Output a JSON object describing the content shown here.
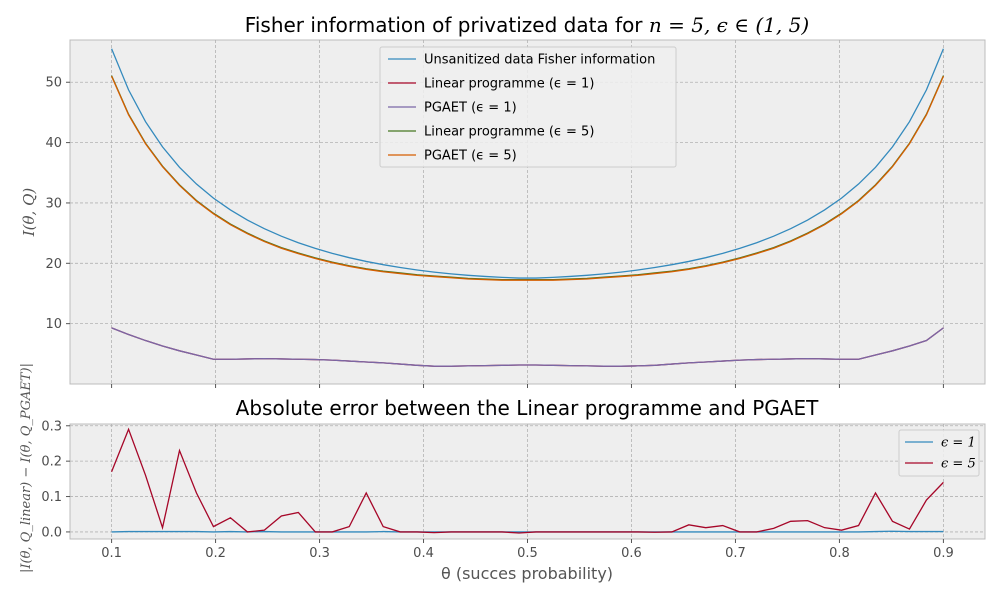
{
  "chart_data": [
    {
      "type": "line",
      "title": "Fisher information of privatized data for n = 5, ϵ ∈ (1, 5)",
      "xlabel": "",
      "ylabel": "I(θ, Q)",
      "xlim": [
        0.06,
        0.94
      ],
      "ylim": [
        0,
        57
      ],
      "grid": true,
      "legend": "upper center",
      "yticks": [
        10,
        20,
        30,
        40,
        50
      ],
      "x": [
        0.1,
        0.11633,
        0.13265,
        0.14898,
        0.16531,
        0.18163,
        0.19796,
        0.21429,
        0.23061,
        0.24694,
        0.26327,
        0.27959,
        0.29592,
        0.31224,
        0.32857,
        0.3449,
        0.36122,
        0.37755,
        0.39388,
        0.4102,
        0.42653,
        0.44286,
        0.45918,
        0.47551,
        0.49184,
        0.50816,
        0.52449,
        0.54082,
        0.55714,
        0.57347,
        0.5898,
        0.60612,
        0.62245,
        0.63878,
        0.6551,
        0.67143,
        0.68776,
        0.70408,
        0.72041,
        0.73673,
        0.75306,
        0.76939,
        0.78571,
        0.80204,
        0.81837,
        0.83469,
        0.85102,
        0.86735,
        0.88367,
        0.9
      ],
      "series": [
        {
          "name": "Unsanitized data Fisher information",
          "color": "#348abd",
          "values": [
            55.56,
            48.73,
            43.46,
            39.29,
            35.91,
            33.13,
            30.8,
            28.84,
            27.16,
            25.73,
            24.49,
            23.41,
            22.47,
            21.65,
            20.93,
            20.31,
            19.77,
            19.3,
            18.89,
            18.54,
            18.25,
            18.01,
            17.82,
            17.67,
            17.55,
            17.55,
            17.67,
            17.82,
            18.01,
            18.25,
            18.54,
            18.89,
            19.3,
            19.77,
            20.31,
            20.93,
            21.65,
            22.47,
            23.41,
            24.49,
            25.73,
            27.16,
            28.84,
            30.8,
            33.13,
            35.91,
            39.29,
            43.46,
            48.73,
            55.56
          ]
        },
        {
          "name": "Linear programme (ϵ = 1)",
          "color": "#a60628",
          "values": [
            9.3,
            8.2,
            7.2,
            6.3,
            5.5,
            4.8,
            4.1,
            4.1,
            4.15,
            4.2,
            4.15,
            4.1,
            4.05,
            3.95,
            3.8,
            3.65,
            3.5,
            3.3,
            3.1,
            2.95,
            2.95,
            3.0,
            3.05,
            3.1,
            3.15,
            3.15,
            3.1,
            3.05,
            3.0,
            2.95,
            2.95,
            3.0,
            3.1,
            3.3,
            3.5,
            3.65,
            3.8,
            3.95,
            4.05,
            4.1,
            4.15,
            4.2,
            4.15,
            4.1,
            4.1,
            4.8,
            5.5,
            6.3,
            7.2,
            9.3
          ]
        },
        {
          "name": "PGAET (ϵ = 1)",
          "color": "#7a68a6",
          "values": [
            9.3,
            8.2,
            7.2,
            6.3,
            5.5,
            4.8,
            4.1,
            4.1,
            4.15,
            4.2,
            4.15,
            4.1,
            4.05,
            3.95,
            3.8,
            3.65,
            3.5,
            3.3,
            3.1,
            2.95,
            2.95,
            3.0,
            3.05,
            3.1,
            3.15,
            3.15,
            3.1,
            3.05,
            3.0,
            2.95,
            2.95,
            3.0,
            3.1,
            3.3,
            3.5,
            3.65,
            3.8,
            3.95,
            4.05,
            4.1,
            4.15,
            4.2,
            4.15,
            4.1,
            4.1,
            4.8,
            5.5,
            6.3,
            7.2,
            9.3
          ]
        },
        {
          "name": "Linear programme (ϵ = 5)",
          "color": "#467821",
          "values": [
            51.1,
            44.7,
            39.9,
            36.1,
            33.0,
            30.4,
            28.3,
            26.5,
            25.0,
            23.7,
            22.6,
            21.7,
            20.9,
            20.2,
            19.6,
            19.1,
            18.7,
            18.4,
            18.1,
            17.9,
            17.7,
            17.5,
            17.4,
            17.3,
            17.3,
            17.3,
            17.3,
            17.4,
            17.5,
            17.7,
            17.9,
            18.1,
            18.4,
            18.7,
            19.1,
            19.6,
            20.2,
            20.9,
            21.7,
            22.6,
            23.7,
            25.0,
            26.5,
            28.3,
            30.4,
            33.0,
            36.1,
            39.9,
            44.7,
            51.1
          ]
        },
        {
          "name": "PGAET (ϵ = 5)",
          "color": "#d55e00",
          "values": [
            51.0,
            44.6,
            39.8,
            36.0,
            32.9,
            30.3,
            28.2,
            26.4,
            24.9,
            23.6,
            22.5,
            21.6,
            20.8,
            20.1,
            19.5,
            19.0,
            18.6,
            18.3,
            18.0,
            17.8,
            17.6,
            17.4,
            17.3,
            17.2,
            17.2,
            17.2,
            17.2,
            17.3,
            17.4,
            17.6,
            17.8,
            18.0,
            18.3,
            18.6,
            19.0,
            19.5,
            20.1,
            20.8,
            21.6,
            22.5,
            23.6,
            24.9,
            26.4,
            28.2,
            30.3,
            32.9,
            36.0,
            39.8,
            44.6,
            51.0
          ]
        }
      ]
    },
    {
      "type": "line",
      "title": "Absolute error between the Linear programme and PGAET",
      "xlabel": "θ (succes probability)",
      "ylabel": "|I(θ, Q_linear) − I(θ, Q_PGAET)|",
      "xlim": [
        0.06,
        0.94
      ],
      "ylim": [
        -0.02,
        0.305
      ],
      "grid": true,
      "legend": "upper right",
      "xticks": [
        0.1,
        0.2,
        0.3,
        0.4,
        0.5,
        0.6,
        0.7,
        0.8,
        0.9
      ],
      "xtick_labels": [
        "0.1",
        "0.2",
        "0.3",
        "0.4",
        "0.5",
        "0.6",
        "0.7",
        "0.8",
        "0.9"
      ],
      "yticks": [
        0.0,
        0.1,
        0.2,
        0.3
      ],
      "ytick_labels": [
        "0.0",
        "0.1",
        "0.2",
        "0.3"
      ],
      "x": [
        0.1,
        0.11633,
        0.13265,
        0.14898,
        0.16531,
        0.18163,
        0.19796,
        0.21429,
        0.23061,
        0.24694,
        0.26327,
        0.27959,
        0.29592,
        0.31224,
        0.32857,
        0.3449,
        0.36122,
        0.37755,
        0.39388,
        0.4102,
        0.42653,
        0.44286,
        0.45918,
        0.47551,
        0.49184,
        0.50816,
        0.52449,
        0.54082,
        0.55714,
        0.57347,
        0.5898,
        0.60612,
        0.62245,
        0.63878,
        0.6551,
        0.67143,
        0.68776,
        0.70408,
        0.72041,
        0.73673,
        0.75306,
        0.76939,
        0.78571,
        0.80204,
        0.81837,
        0.83469,
        0.85102,
        0.86735,
        0.88367,
        0.9
      ],
      "series": [
        {
          "name": "ϵ = 1",
          "color": "#348abd",
          "values": [
            0.0,
            0.001,
            0.001,
            0.001,
            0.001,
            0.001,
            0.0,
            0.001,
            0.0,
            0.001,
            0.0,
            0.0,
            0.0,
            0.0,
            0.0,
            0.0,
            0.001,
            0.0,
            0.0,
            0.0,
            0.0,
            0.0,
            0.0,
            0.0,
            0.0,
            0.0,
            0.0,
            0.0,
            0.0,
            0.0,
            0.0,
            0.0,
            0.0,
            0.0,
            0.0,
            0.0,
            0.0,
            0.0,
            0.0,
            0.0,
            0.0,
            0.0,
            0.0,
            0.0,
            0.0,
            0.001,
            0.002,
            0.001,
            0.001,
            0.001
          ]
        },
        {
          "name": "ϵ = 5",
          "color": "#a60628",
          "values": [
            0.17,
            0.29,
            0.16,
            0.012,
            0.23,
            0.11,
            0.015,
            0.04,
            0.0,
            0.005,
            0.045,
            0.055,
            0.0,
            0.0,
            0.015,
            0.11,
            0.015,
            0.0,
            0.0,
            -0.002,
            0.0,
            0.0,
            0.0,
            0.0,
            -0.003,
            0.0,
            0.0,
            0.0,
            0.0,
            0.0,
            0.0,
            0.0,
            -0.001,
            0.0,
            0.02,
            0.012,
            0.018,
            0.0,
            0.0,
            0.01,
            0.03,
            0.032,
            0.012,
            0.005,
            0.018,
            0.11,
            0.03,
            0.008,
            0.09,
            0.14
          ]
        }
      ]
    }
  ],
  "top": {
    "title_prefix": "Fisher information of privatized data for ",
    "title_math": "n = 5, ϵ ∈ (1, 5)"
  }
}
